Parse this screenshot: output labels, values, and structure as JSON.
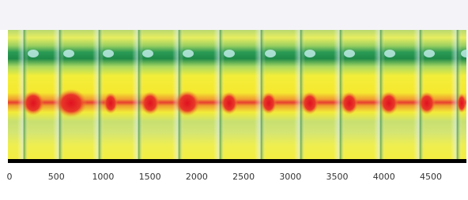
{
  "chart_data": {
    "type": "heatmap",
    "xlim": [
      0,
      4880
    ],
    "xticks": [
      0,
      500,
      1000,
      1500,
      2000,
      2500,
      3000,
      3500,
      4000,
      4500
    ]
  }
}
